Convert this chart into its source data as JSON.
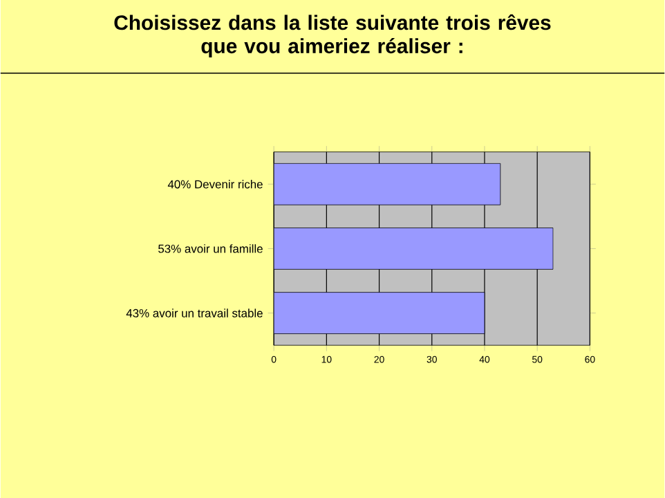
{
  "chart_data": {
    "type": "bar",
    "orientation": "horizontal",
    "title": "Choisissez dans la  liste suivante trois rêves\nque vou aimeriez réaliser :",
    "categories": [
      "40% Devenir riche",
      "53% avoir un famille",
      "43% avoir un travail stable"
    ],
    "values": [
      43,
      53,
      40
    ],
    "color": "#9999ff",
    "xlim": [
      0,
      60
    ],
    "xticks": [
      0,
      10,
      20,
      30,
      40,
      50,
      60
    ],
    "grid": "x"
  }
}
